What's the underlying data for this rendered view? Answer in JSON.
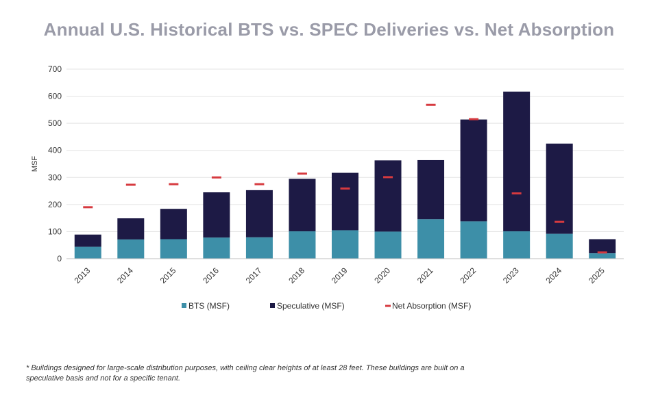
{
  "chart_data": {
    "type": "bar",
    "title": "Annual U.S. Historical BTS vs. SPEC Deliveries vs. Net Absorption",
    "ylabel": "MSF",
    "xlabel": "",
    "ylim": [
      0,
      700
    ],
    "yticks": [
      0,
      100,
      200,
      300,
      400,
      500,
      600,
      700
    ],
    "grid": true,
    "legend_position": "bottom",
    "stacked": true,
    "categories": [
      "2013",
      "2014",
      "2015",
      "2016",
      "2017",
      "2018",
      "2019",
      "2020",
      "2021",
      "2022",
      "2023",
      "2024",
      "2025"
    ],
    "series": [
      {
        "name": "BTS (MSF)",
        "kind": "bar",
        "color": "#3d8fa8",
        "values": [
          44,
          71,
          72,
          78,
          79,
          101,
          105,
          100,
          146,
          138,
          101,
          92,
          20
        ]
      },
      {
        "name": "Speculative (MSF)",
        "kind": "bar",
        "color": "#1d1a45",
        "values": [
          45,
          78,
          112,
          167,
          174,
          194,
          212,
          263,
          218,
          376,
          516,
          333,
          52
        ]
      },
      {
        "name": "Net Absorption (MSF)",
        "kind": "marker",
        "color": "#d63a3f",
        "values": [
          190,
          273,
          275,
          300,
          275,
          314,
          259,
          301,
          568,
          515,
          241,
          136,
          23
        ]
      }
    ]
  },
  "footnote": "* Buildings designed for large-scale distribution purposes, with ceiling clear heights of at least 28 feet. These buildings are built on a speculative basis and not for a specific tenant."
}
